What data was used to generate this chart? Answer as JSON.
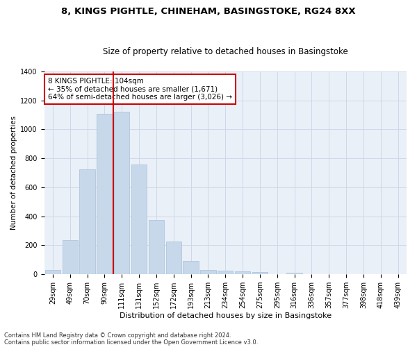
{
  "title1": "8, KINGS PIGHTLE, CHINEHAM, BASINGSTOKE, RG24 8XX",
  "title2": "Size of property relative to detached houses in Basingstoke",
  "xlabel": "Distribution of detached houses by size in Basingstoke",
  "ylabel": "Number of detached properties",
  "bar_color": "#c6d8ea",
  "bar_edge_color": "#a8c0d8",
  "categories": [
    "29sqm",
    "49sqm",
    "70sqm",
    "90sqm",
    "111sqm",
    "131sqm",
    "152sqm",
    "172sqm",
    "193sqm",
    "213sqm",
    "234sqm",
    "254sqm",
    "275sqm",
    "295sqm",
    "316sqm",
    "336sqm",
    "357sqm",
    "377sqm",
    "398sqm",
    "418sqm",
    "439sqm"
  ],
  "values": [
    30,
    235,
    725,
    1110,
    1120,
    760,
    375,
    225,
    90,
    30,
    25,
    20,
    15,
    0,
    10,
    0,
    0,
    0,
    0,
    0,
    0
  ],
  "annotation_text": "8 KINGS PIGHTLE: 104sqm\n← 35% of detached houses are smaller (1,671)\n64% of semi-detached houses are larger (3,026) →",
  "annotation_box_color": "#ffffff",
  "annotation_box_edge_color": "#cc0000",
  "vline_color": "#cc0000",
  "vline_bin_index": 4,
  "ylim": [
    0,
    1400
  ],
  "yticks": [
    0,
    200,
    400,
    600,
    800,
    1000,
    1200,
    1400
  ],
  "grid_color": "#d0d8e8",
  "background_color": "#eaf0f8",
  "footnote1": "Contains HM Land Registry data © Crown copyright and database right 2024.",
  "footnote2": "Contains public sector information licensed under the Open Government Licence v3.0.",
  "title1_fontsize": 9.5,
  "title2_fontsize": 8.5,
  "xlabel_fontsize": 8,
  "ylabel_fontsize": 7.5,
  "tick_fontsize": 7,
  "annotation_fontsize": 7.5,
  "footnote_fontsize": 6
}
